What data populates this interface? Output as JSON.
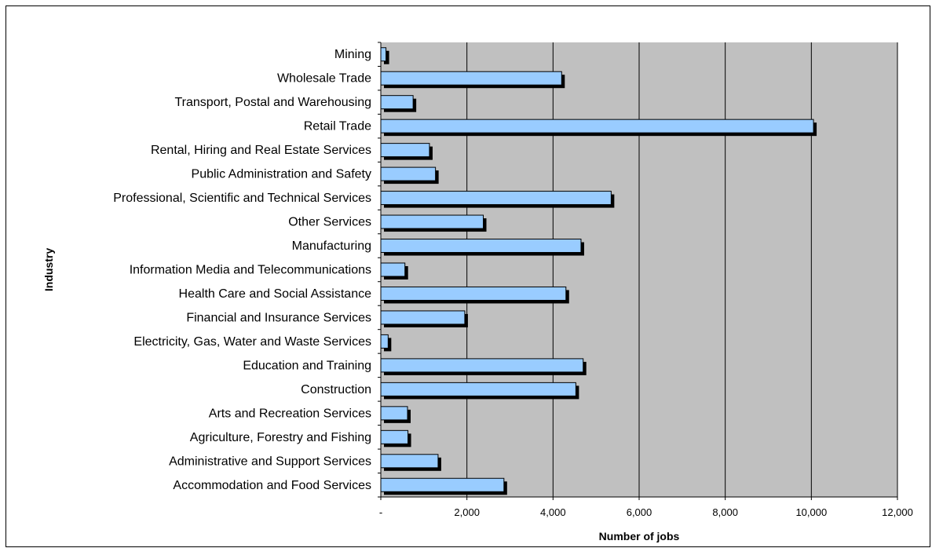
{
  "chart_data": {
    "type": "bar",
    "orientation": "horizontal",
    "title": "",
    "xlabel": "Number of jobs",
    "ylabel": "Industry",
    "xlim": [
      0,
      12000
    ],
    "x_ticks": [
      0,
      2000,
      4000,
      6000,
      8000,
      10000,
      12000
    ],
    "x_tick_labels": [
      "-",
      "2,000",
      "4,000",
      "6,000",
      "8,000",
      "10,000",
      "12,000"
    ],
    "grid": true,
    "legend": "none",
    "plot_background": "#c0c0c0",
    "bar_color": "#99ccff",
    "shadow_color": "#000000",
    "categories": [
      "Mining",
      "Wholesale Trade",
      "Transport, Postal and Warehousing",
      "Retail Trade",
      "Rental, Hiring and Real Estate Services",
      "Public Administration and Safety",
      "Professional, Scientific and Technical Services",
      "Other Services",
      "Manufacturing",
      "Information Media and Telecommunications",
      "Health Care and Social Assistance",
      "Financial and Insurance Services",
      "Electricity, Gas, Water and Waste Services",
      "Education and Training",
      "Construction",
      "Arts and Recreation Services",
      "Agriculture, Forestry and Fishing",
      "Administrative and Support Services",
      "Accommodation and Food Services"
    ],
    "values": [
      120,
      4200,
      750,
      10050,
      1130,
      1270,
      5350,
      2380,
      4650,
      560,
      4300,
      1950,
      170,
      4700,
      4530,
      620,
      630,
      1330,
      2860
    ]
  }
}
